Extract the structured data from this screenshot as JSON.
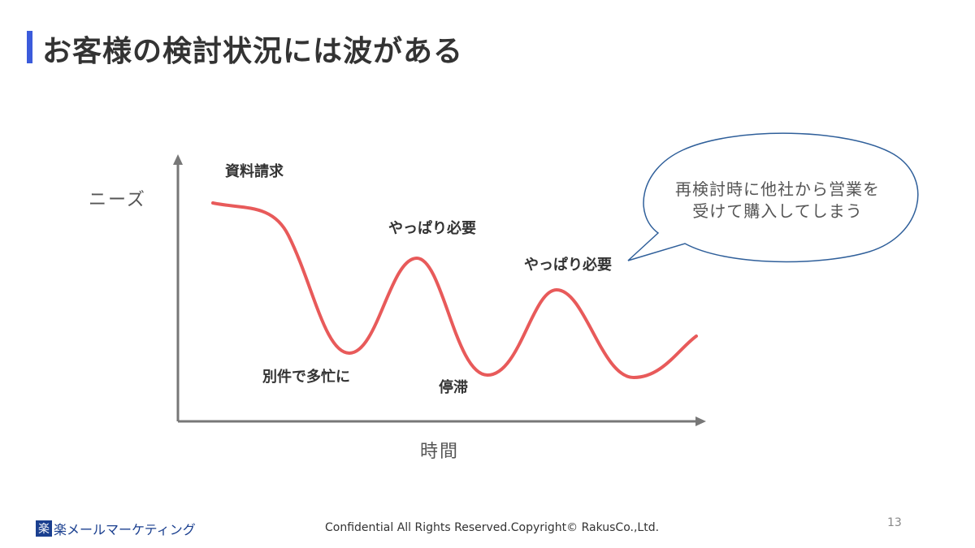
{
  "slide": {
    "title": "お客様の検討状況には波がある",
    "accent_color": "#3b5bdb"
  },
  "diagram": {
    "y_axis_label": "ニーズ",
    "x_axis_label": "時間",
    "curve_color": "#e85a5a",
    "axis_color": "#777777",
    "labels": {
      "shiryo": "資料請求",
      "yappari1": "やっぱり必要",
      "yappari2": "やっぱり必要",
      "betsuken": "別件で多忙に",
      "teitai": "停滞"
    },
    "speech_bubble": {
      "line1": "再検討時に他社から営業を",
      "line2": "受けて購入してしまう",
      "border_color": "#2f5f9a"
    }
  },
  "footer": {
    "logo_mark": "楽",
    "logo_text": "楽メールマーケティング",
    "copyright": "Confidential All Rights Reserved.Copyright© RakusCo.,Ltd.",
    "page_number": "13"
  }
}
